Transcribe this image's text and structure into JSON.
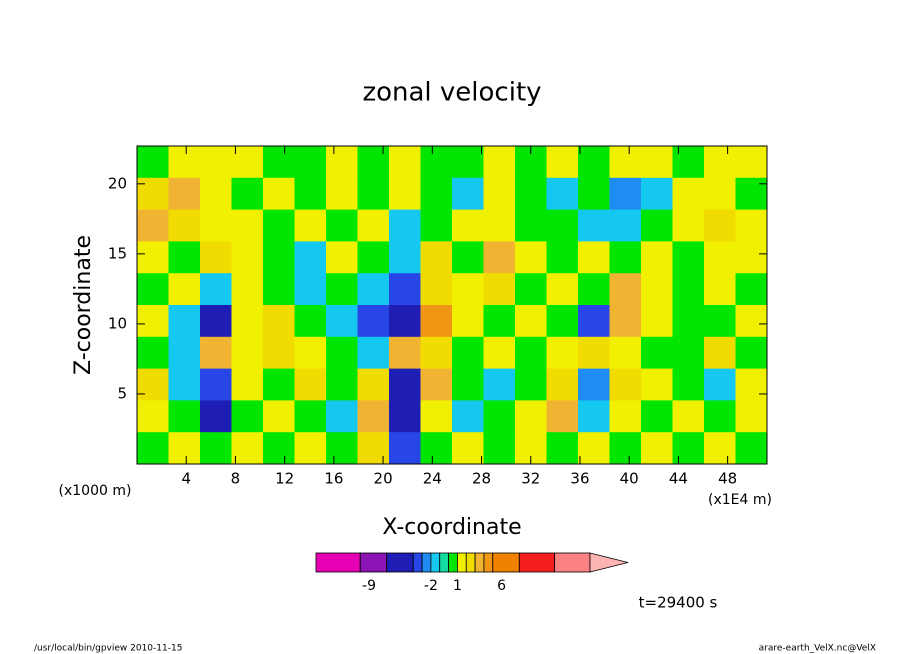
{
  "chart_data": {
    "type": "contour",
    "title": "zonal velocity",
    "xlabel": "X-coordinate",
    "ylabel": "Z-coordinate",
    "xunit": "(x1E4 m)",
    "yunit": "(x1000 m)",
    "xlim": [
      0,
      51.2
    ],
    "ylim": [
      0,
      22.7
    ],
    "xticks": [
      4,
      8,
      12,
      16,
      20,
      24,
      28,
      32,
      36,
      40,
      44,
      48
    ],
    "yticks": [
      5,
      10,
      15,
      20
    ],
    "field": [
      [
        0.5,
        1.5,
        1.5,
        1.5,
        0.5,
        0.5,
        1.5,
        0.5,
        1.5,
        0.5,
        0.5,
        1.5,
        0.5,
        1.5,
        0.5,
        1.5,
        1.5,
        0.5,
        1.5,
        1.5
      ],
      [
        2.5,
        3.5,
        1.5,
        0.5,
        1.5,
        0.5,
        1.5,
        0.5,
        1.5,
        0.5,
        -1.5,
        1.5,
        0.5,
        -1.5,
        0.5,
        -2.5,
        -1.5,
        1.5,
        1.5,
        0.5
      ],
      [
        3.5,
        2.5,
        1.5,
        1.5,
        0.5,
        1.5,
        0.5,
        1.5,
        -1.5,
        0.5,
        1.5,
        1.5,
        0.5,
        0.5,
        -1.5,
        -1.5,
        0.5,
        1.5,
        2.5,
        1.5
      ],
      [
        1.5,
        0.5,
        2.5,
        1.5,
        0.5,
        -1.5,
        1.5,
        0.5,
        -1.5,
        2.5,
        0.5,
        3.5,
        1.5,
        0.5,
        1.5,
        0.5,
        1.5,
        0.5,
        1.5,
        1.5
      ],
      [
        0.5,
        1.5,
        -1.5,
        1.5,
        0.5,
        -1.5,
        0.5,
        -1.5,
        -3.5,
        2.5,
        1.5,
        2.5,
        0.5,
        1.5,
        0.5,
        3.5,
        1.5,
        0.5,
        1.5,
        0.5
      ],
      [
        1.5,
        -1.5,
        -5,
        1.5,
        2.5,
        0.5,
        -1.5,
        -3.5,
        -6,
        4.5,
        1.5,
        0.5,
        1.5,
        0.5,
        -3.5,
        3.5,
        1.5,
        0.5,
        0.5,
        1.5
      ],
      [
        0.5,
        -1.5,
        3.5,
        1.5,
        2.5,
        1.5,
        0.5,
        -1.5,
        3.5,
        2.5,
        0.5,
        1.5,
        0.5,
        1.5,
        2.5,
        1.5,
        0.5,
        0.5,
        2.5,
        0.5
      ],
      [
        2.5,
        -1.5,
        -3.5,
        1.5,
        0.5,
        2.5,
        0.5,
        2.5,
        -6,
        3.5,
        0.5,
        -1.5,
        0.5,
        2.5,
        -2.5,
        2.5,
        1.5,
        0.5,
        -1.5,
        1.5
      ],
      [
        1.5,
        0.5,
        -5,
        0.5,
        1.5,
        0.5,
        -1.5,
        3.5,
        -6,
        1.5,
        -1.5,
        0.5,
        1.5,
        3.5,
        -1.5,
        1.5,
        0.5,
        1.5,
        0.5,
        1.5
      ],
      [
        0.5,
        1.5,
        0.5,
        1.5,
        0.5,
        1.5,
        0.5,
        2.5,
        -3.5,
        0.5,
        1.5,
        0.5,
        1.5,
        0.5,
        1.5,
        0.5,
        1.5,
        0.5,
        1.5,
        0.5
      ]
    ],
    "colorbar": {
      "levels": [
        -15,
        -10,
        -7,
        -4,
        -3,
        -2,
        -1,
        0,
        1,
        2,
        3,
        4,
        5,
        8,
        12,
        16
      ],
      "colors": [
        "#e600b4",
        "#8c14b4",
        "#1e1eb4",
        "#2846e6",
        "#1e8cf0",
        "#14c8f0",
        "#14dca0",
        "#00e600",
        "#f0f000",
        "#f0dc00",
        "#f0b432",
        "#f09614",
        "#f08200",
        "#f51e1e",
        "#fa8282"
      ],
      "over_color": "#ffb4b4",
      "ticks": [
        -9,
        -2,
        1,
        6
      ]
    },
    "annotation": "t=29400 s"
  },
  "footer": {
    "left": "/usr/local/bin/gpview  2010-11-15",
    "right": "arare-earth_VelX.nc@VelX"
  }
}
